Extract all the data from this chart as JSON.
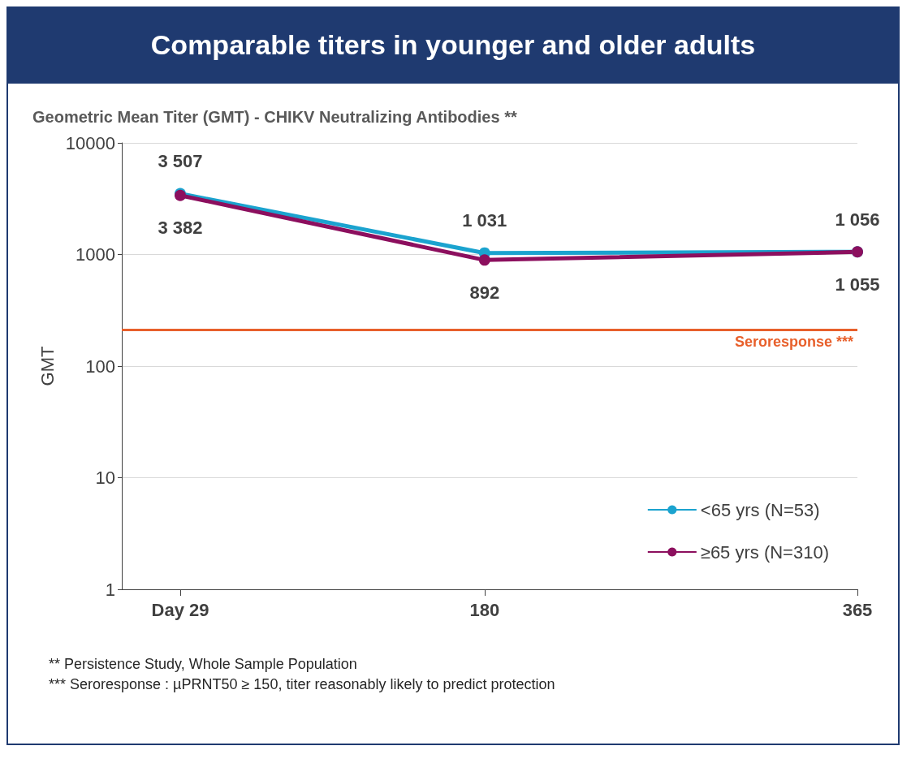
{
  "chart_data": {
    "type": "line",
    "title": "Comparable titers in younger and older adults",
    "subtitle": "Geometric Mean Titer (GMT) - CHIKV Neutralizing Antibodies **",
    "ylabel": "GMT",
    "x": [
      29,
      180,
      365
    ],
    "xlim": [
      0,
      365
    ],
    "xticks": [
      {
        "value": 29,
        "label": "Day 29"
      },
      180,
      365
    ],
    "ylim": [
      1,
      10000
    ],
    "yticks": [
      1,
      10,
      100,
      1000,
      10000
    ],
    "log": "y",
    "grid": "y",
    "series": [
      {
        "name": "<65 yrs (N=53)",
        "color": "#1ba3cf",
        "values": [
          3507,
          1031,
          1056
        ],
        "value_labels": [
          "3 507",
          "1 031",
          "1 056"
        ]
      },
      {
        "name": "≥65 yrs (N=310)",
        "color": "#8c0f5e",
        "values": [
          3382,
          892,
          1055
        ],
        "value_labels": [
          "3 382",
          "892",
          "1 055"
        ]
      }
    ],
    "ref_lines": [
      {
        "axis": "y",
        "value": 210,
        "label": "Seroresponse ***",
        "color": "#e8602c"
      }
    ],
    "marker": "circle",
    "legend": "bottom right",
    "annotations": [
      "** Persistence Study, Whole Sample Population",
      "***  Seroresponse : µPRNT50 ≥ 150, titer reasonably likely to predict protection"
    ]
  }
}
